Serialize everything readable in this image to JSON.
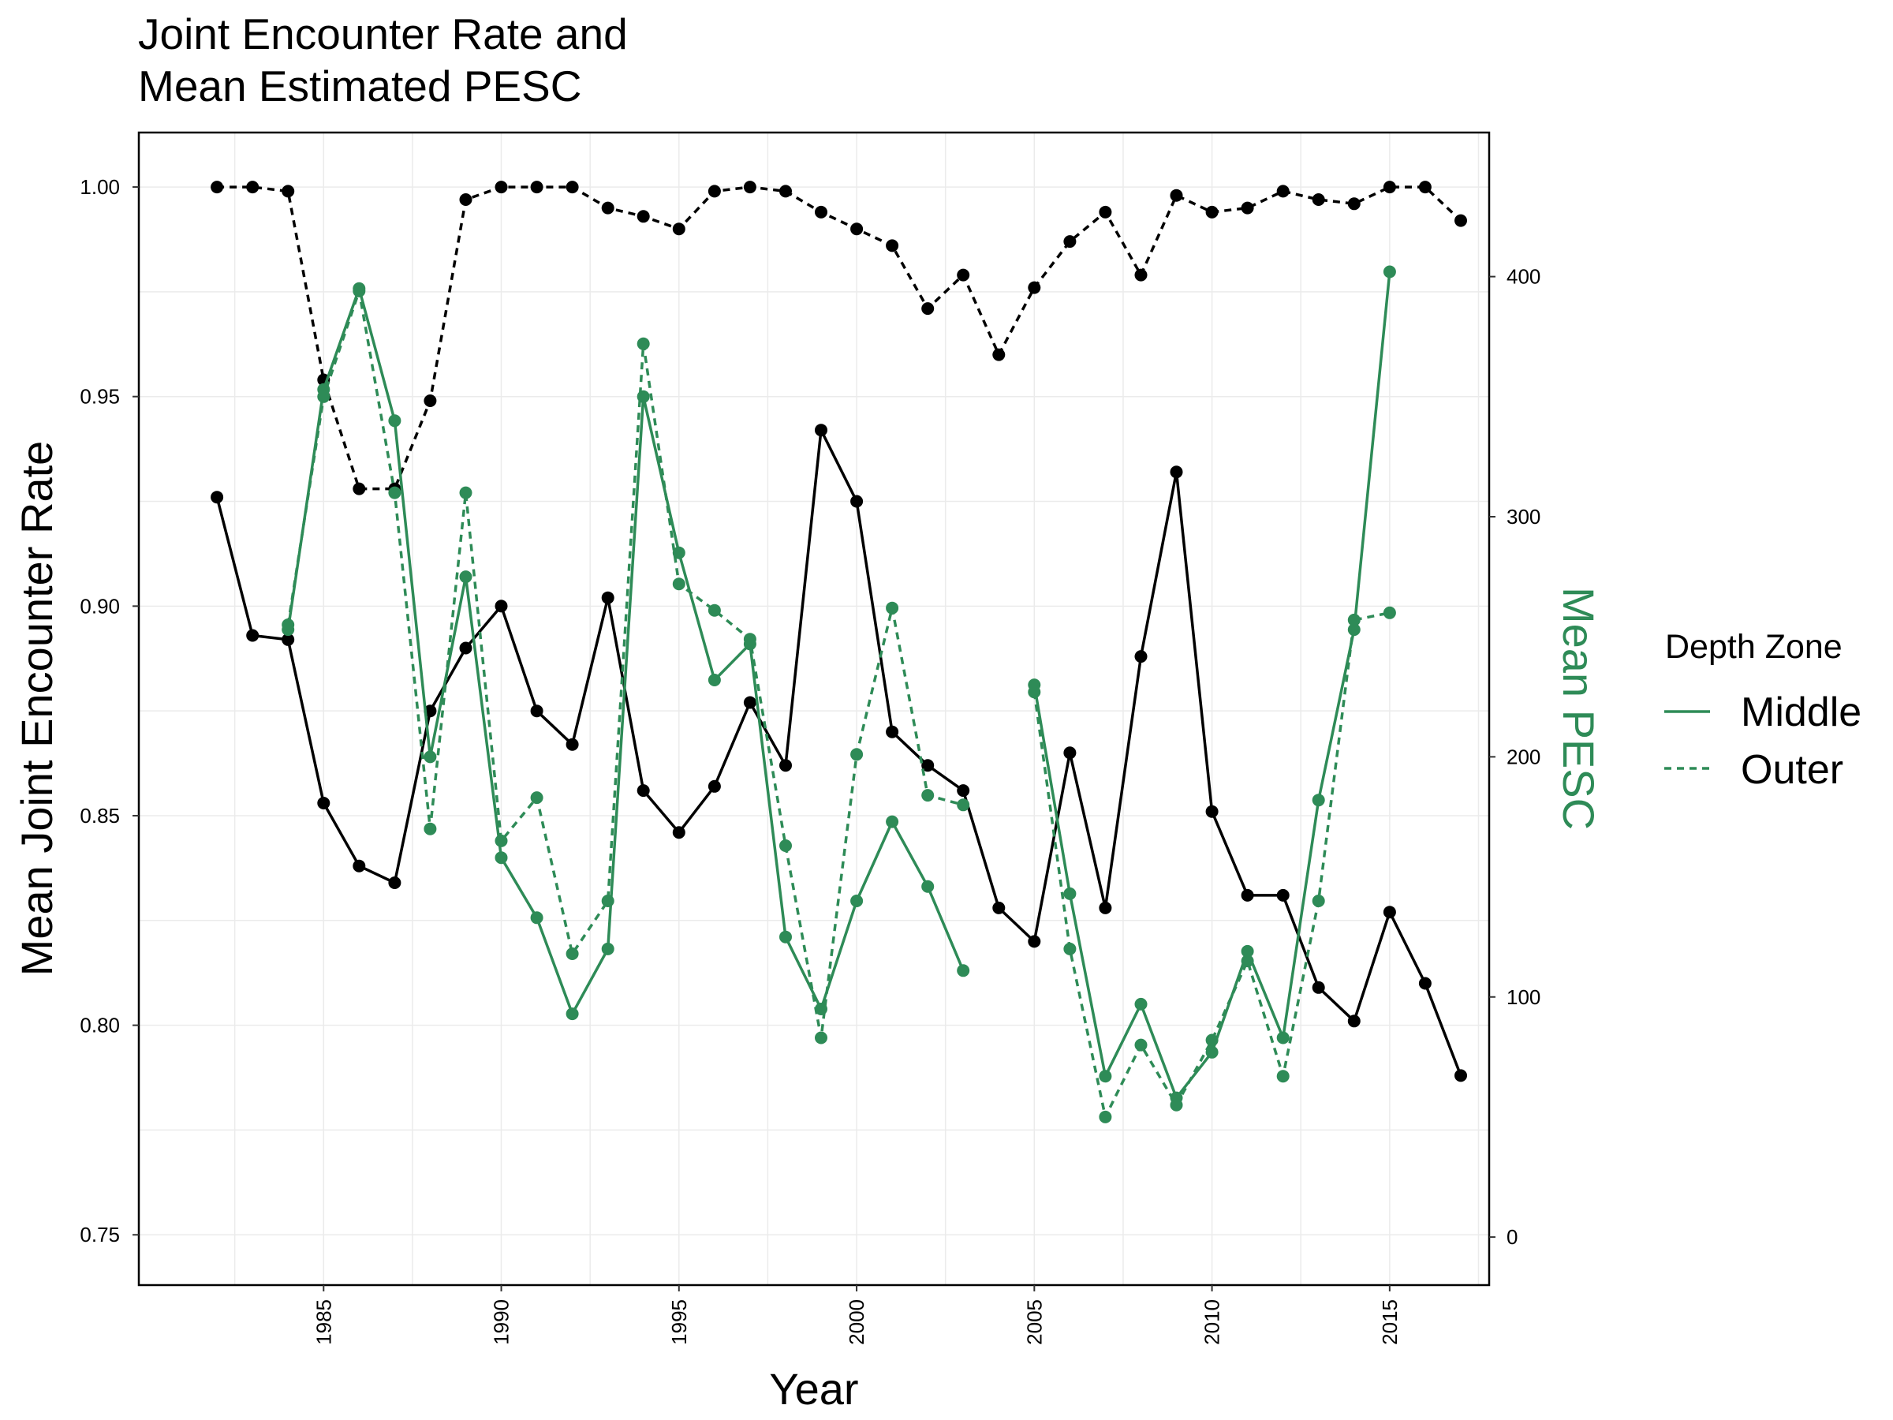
{
  "chart_data": {
    "type": "line",
    "title": [
      "Joint Encounter Rate and",
      "Mean Estimated PESC"
    ],
    "xlabel": "Year",
    "ylabel": "Mean Joint Encounter Rate",
    "y2label": "Mean PESC",
    "xlim": [
      1979.8,
      2017.8
    ],
    "ylim": [
      0.738,
      1.013
    ],
    "y2lim": [
      -20,
      460
    ],
    "x_ticks": [
      1985,
      1990,
      1995,
      2000,
      2005,
      2010,
      2015
    ],
    "y_ticks": [
      0.75,
      0.8,
      0.85,
      0.9,
      0.95,
      1.0
    ],
    "y_tick_labels": [
      "0.75",
      "0.80",
      "0.85",
      "0.90",
      "0.95",
      "1.00"
    ],
    "y2_ticks": [
      0,
      100,
      200,
      300,
      400
    ],
    "grid": true,
    "legend": {
      "title": "Depth Zone",
      "entries": [
        "Middle",
        "Outer"
      ],
      "placement": "right"
    },
    "colors": {
      "encounter": "#000000",
      "pesc": "#2e8b57"
    },
    "series": [
      {
        "axis": "left",
        "color": "#000000",
        "dash": "solid",
        "points": [
          [
            1982,
            0.926
          ],
          [
            1983,
            0.893
          ],
          [
            1984,
            0.892
          ],
          [
            1985,
            0.853
          ],
          [
            1986,
            0.838
          ],
          [
            1987,
            0.834
          ],
          [
            1988,
            0.875
          ],
          [
            1989,
            0.89
          ],
          [
            1990,
            0.9
          ],
          [
            1991,
            0.875
          ],
          [
            1992,
            0.867
          ],
          [
            1993,
            0.902
          ],
          [
            1994,
            0.856
          ],
          [
            1995,
            0.846
          ],
          [
            1996,
            0.857
          ],
          [
            1997,
            0.877
          ],
          [
            1998,
            0.862
          ],
          [
            1999,
            0.942
          ],
          [
            2000,
            0.925
          ],
          [
            2001,
            0.87
          ],
          [
            2002,
            0.862
          ],
          [
            2003,
            0.856
          ],
          [
            2004,
            0.828
          ],
          [
            2005,
            0.82
          ],
          [
            2006,
            0.865
          ],
          [
            2007,
            0.828
          ],
          [
            2008,
            0.888
          ],
          [
            2009,
            0.932
          ],
          [
            2010,
            0.851
          ],
          [
            2011,
            0.831
          ],
          [
            2012,
            0.831
          ],
          [
            2013,
            0.809
          ],
          [
            2014,
            0.801
          ],
          [
            2015,
            0.827
          ],
          [
            2016,
            0.81
          ],
          [
            2017,
            0.788
          ]
        ]
      },
      {
        "axis": "left",
        "color": "#000000",
        "dash": "dashed",
        "points": [
          [
            1982,
            1.0
          ],
          [
            1983,
            1.0
          ],
          [
            1984,
            0.999
          ],
          [
            1985,
            0.954
          ],
          [
            1986,
            0.928
          ],
          [
            1987,
            0.928
          ],
          [
            1988,
            0.949
          ],
          [
            1989,
            0.997
          ],
          [
            1990,
            1.0
          ],
          [
            1991,
            1.0
          ],
          [
            1992,
            1.0
          ],
          [
            1993,
            0.995
          ],
          [
            1994,
            0.993
          ],
          [
            1995,
            0.99
          ],
          [
            1996,
            0.999
          ],
          [
            1997,
            1.0
          ],
          [
            1998,
            0.999
          ],
          [
            1999,
            0.994
          ],
          [
            2000,
            0.99
          ],
          [
            2001,
            0.986
          ],
          [
            2002,
            0.971
          ],
          [
            2003,
            0.979
          ],
          [
            2004,
            0.96
          ],
          [
            2005,
            0.976
          ],
          [
            2006,
            0.987
          ],
          [
            2007,
            0.994
          ],
          [
            2008,
            0.979
          ],
          [
            2009,
            0.998
          ],
          [
            2010,
            0.994
          ],
          [
            2011,
            0.995
          ],
          [
            2012,
            0.999
          ],
          [
            2013,
            0.997
          ],
          [
            2014,
            0.996
          ],
          [
            2015,
            1.0
          ],
          [
            2016,
            1.0
          ],
          [
            2017,
            0.992
          ]
        ]
      },
      {
        "axis": "right",
        "color": "#2e8b57",
        "dash": "solid",
        "points": [
          [
            1984,
            253
          ],
          [
            1985,
            353
          ],
          [
            1986,
            395
          ],
          [
            1987,
            340
          ],
          [
            1988,
            200
          ],
          [
            1989,
            275
          ],
          [
            1990,
            158
          ],
          [
            1991,
            133
          ],
          [
            1992,
            93
          ],
          [
            1993,
            120
          ],
          [
            1994,
            350
          ],
          [
            1995,
            285
          ],
          [
            1996,
            232
          ],
          [
            1997,
            247
          ],
          [
            1998,
            125
          ],
          [
            1999,
            95
          ],
          [
            2000,
            140
          ],
          [
            2001,
            173
          ],
          [
            2002,
            146
          ],
          [
            2003,
            111
          ],
          null,
          [
            2005,
            230
          ],
          [
            2006,
            143
          ],
          [
            2007,
            67
          ],
          [
            2008,
            97
          ],
          [
            2009,
            58
          ],
          [
            2010,
            77
          ],
          [
            2011,
            119
          ],
          [
            2012,
            83
          ],
          [
            2013,
            182
          ],
          [
            2014,
            253
          ],
          [
            2015,
            402
          ]
        ]
      },
      {
        "axis": "right",
        "color": "#2e8b57",
        "dash": "dashed",
        "points": [
          [
            1984,
            255
          ],
          [
            1985,
            350
          ],
          [
            1986,
            394
          ],
          [
            1987,
            310
          ],
          [
            1988,
            170
          ],
          [
            1989,
            310
          ],
          [
            1990,
            165
          ],
          [
            1991,
            183
          ],
          [
            1992,
            118
          ],
          [
            1993,
            140
          ],
          [
            1994,
            372
          ],
          [
            1995,
            272
          ],
          [
            1996,
            261
          ],
          [
            1997,
            249
          ],
          [
            1998,
            163
          ],
          [
            1999,
            83
          ],
          [
            2000,
            201
          ],
          [
            2001,
            262
          ],
          [
            2002,
            184
          ],
          [
            2003,
            180
          ],
          null,
          [
            2005,
            227
          ],
          [
            2006,
            120
          ],
          [
            2007,
            50
          ],
          [
            2008,
            80
          ],
          [
            2009,
            55
          ],
          [
            2010,
            82
          ],
          [
            2011,
            115
          ],
          [
            2012,
            67
          ],
          [
            2013,
            140
          ],
          [
            2014,
            257
          ],
          [
            2015,
            260
          ]
        ]
      }
    ]
  }
}
